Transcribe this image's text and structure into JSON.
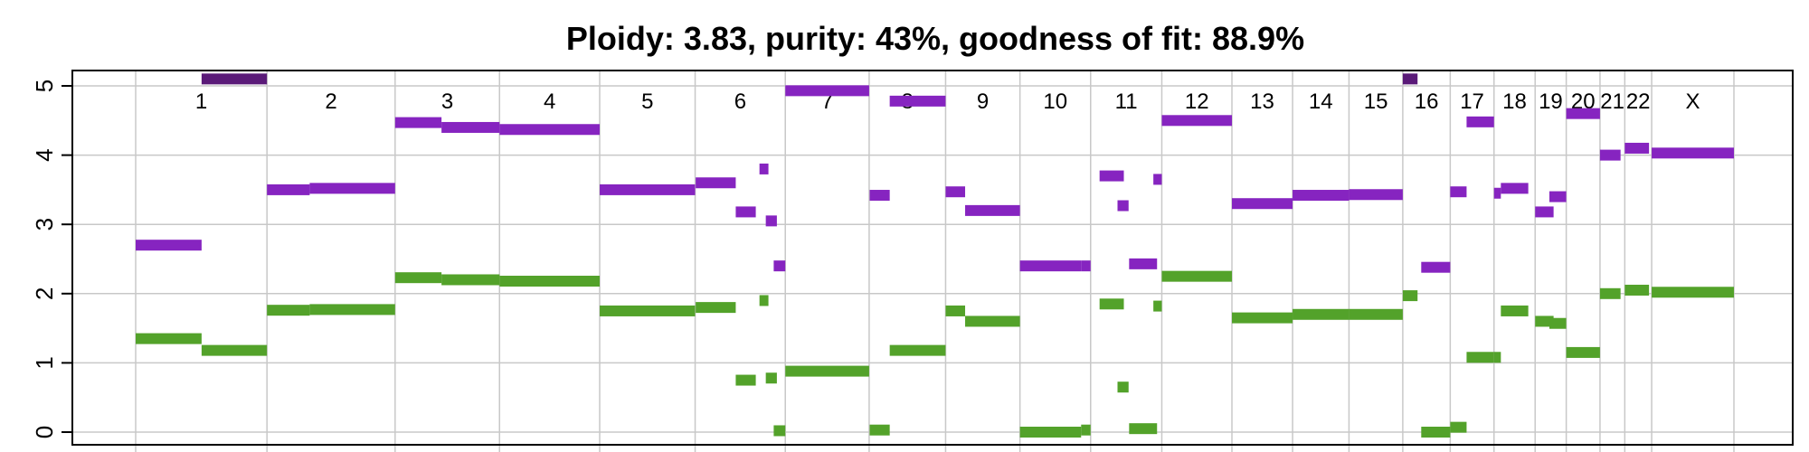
{
  "chart_data": {
    "type": "segment-plot",
    "title": "Ploidy: 3.83, purity: 43%, goodness of fit: 88.9%",
    "xlabel": "",
    "ylabel": "",
    "ylim": [
      0,
      5
    ],
    "yticks": [
      0,
      1,
      2,
      3,
      4,
      5
    ],
    "grid": true,
    "colors": {
      "total": "#8624c0",
      "minor": "#53a22a",
      "clipped": "#5a1a78",
      "grid": "#c8c8c8",
      "axis": "#000000"
    },
    "chromosomes": [
      {
        "label": "1",
        "start": 0,
        "end": 249
      },
      {
        "label": "2",
        "start": 249,
        "end": 492
      },
      {
        "label": "3",
        "start": 492,
        "end": 690
      },
      {
        "label": "4",
        "start": 690,
        "end": 880
      },
      {
        "label": "5",
        "start": 880,
        "end": 1061
      },
      {
        "label": "6",
        "start": 1061,
        "end": 1232
      },
      {
        "label": "7",
        "start": 1232,
        "end": 1391
      },
      {
        "label": "8",
        "start": 1391,
        "end": 1536
      },
      {
        "label": "9",
        "start": 1536,
        "end": 1677
      },
      {
        "label": "10",
        "start": 1677,
        "end": 1811
      },
      {
        "label": "11",
        "start": 1811,
        "end": 1946
      },
      {
        "label": "12",
        "start": 1946,
        "end": 2079
      },
      {
        "label": "13",
        "start": 2079,
        "end": 2194
      },
      {
        "label": "14",
        "start": 2194,
        "end": 2301
      },
      {
        "label": "15",
        "start": 2301,
        "end": 2403
      },
      {
        "label": "16",
        "start": 2403,
        "end": 2493
      },
      {
        "label": "17",
        "start": 2493,
        "end": 2576
      },
      {
        "label": "18",
        "start": 2576,
        "end": 2654
      },
      {
        "label": "19",
        "start": 2654,
        "end": 2713
      },
      {
        "label": "20",
        "start": 2713,
        "end": 2777
      },
      {
        "label": "21",
        "start": 2777,
        "end": 2824
      },
      {
        "label": "22",
        "start": 2824,
        "end": 2875
      },
      {
        "label": "X",
        "start": 2875,
        "end": 3031
      }
    ],
    "series": [
      {
        "key": "total",
        "segments": [
          {
            "start": 0,
            "end": 125,
            "value": 2.7
          },
          {
            "start": 125,
            "end": 249,
            "value": 5.1,
            "clipped": true
          },
          {
            "start": 249,
            "end": 330,
            "value": 3.5
          },
          {
            "start": 330,
            "end": 492,
            "value": 3.52
          },
          {
            "start": 492,
            "end": 580,
            "value": 4.47
          },
          {
            "start": 580,
            "end": 690,
            "value": 4.4
          },
          {
            "start": 690,
            "end": 880,
            "value": 4.37
          },
          {
            "start": 880,
            "end": 1061,
            "value": 3.5
          },
          {
            "start": 1062,
            "end": 1138,
            "value": 3.6
          },
          {
            "start": 1138,
            "end": 1176,
            "value": 3.18
          },
          {
            "start": 1183,
            "end": 1200,
            "value": 3.8
          },
          {
            "start": 1195,
            "end": 1216,
            "value": 3.05
          },
          {
            "start": 1210,
            "end": 1232,
            "value": 2.4
          },
          {
            "start": 1232,
            "end": 1391,
            "value": 4.93
          },
          {
            "start": 1392,
            "end": 1430,
            "value": 3.42
          },
          {
            "start": 1430,
            "end": 1536,
            "value": 4.78
          },
          {
            "start": 1536,
            "end": 1573,
            "value": 3.47
          },
          {
            "start": 1573,
            "end": 1677,
            "value": 3.2
          },
          {
            "start": 1677,
            "end": 1793,
            "value": 2.4
          },
          {
            "start": 1793,
            "end": 1811,
            "value": 2.4
          },
          {
            "start": 1828,
            "end": 1874,
            "value": 3.7
          },
          {
            "start": 1862,
            "end": 1883,
            "value": 3.27
          },
          {
            "start": 1884,
            "end": 1937,
            "value": 2.43
          },
          {
            "start": 1930,
            "end": 1946,
            "value": 3.65
          },
          {
            "start": 1946,
            "end": 2079,
            "value": 4.5
          },
          {
            "start": 2079,
            "end": 2194,
            "value": 3.3
          },
          {
            "start": 2194,
            "end": 2301,
            "value": 3.42
          },
          {
            "start": 2301,
            "end": 2403,
            "value": 3.43
          },
          {
            "start": 2403,
            "end": 2431,
            "value": 5.1,
            "clipped": true
          },
          {
            "start": 2438,
            "end": 2493,
            "value": 2.38
          },
          {
            "start": 2493,
            "end": 2524,
            "value": 3.47
          },
          {
            "start": 2524,
            "end": 2576,
            "value": 4.48
          },
          {
            "start": 2576,
            "end": 2589,
            "value": 3.45
          },
          {
            "start": 2589,
            "end": 2641,
            "value": 3.52
          },
          {
            "start": 2654,
            "end": 2689,
            "value": 3.18
          },
          {
            "start": 2681,
            "end": 2713,
            "value": 3.4
          },
          {
            "start": 2713,
            "end": 2777,
            "value": 4.6
          },
          {
            "start": 2777,
            "end": 2816,
            "value": 4.0
          },
          {
            "start": 2824,
            "end": 2870,
            "value": 4.1
          },
          {
            "start": 2875,
            "end": 3031,
            "value": 4.03
          }
        ]
      },
      {
        "key": "minor",
        "segments": [
          {
            "start": 0,
            "end": 125,
            "value": 1.35
          },
          {
            "start": 125,
            "end": 249,
            "value": 1.18
          },
          {
            "start": 249,
            "end": 330,
            "value": 1.76
          },
          {
            "start": 330,
            "end": 492,
            "value": 1.77
          },
          {
            "start": 492,
            "end": 580,
            "value": 2.23
          },
          {
            "start": 580,
            "end": 690,
            "value": 2.2
          },
          {
            "start": 690,
            "end": 880,
            "value": 2.18
          },
          {
            "start": 880,
            "end": 1061,
            "value": 1.75
          },
          {
            "start": 1062,
            "end": 1138,
            "value": 1.8
          },
          {
            "start": 1138,
            "end": 1176,
            "value": 0.75
          },
          {
            "start": 1183,
            "end": 1200,
            "value": 1.9
          },
          {
            "start": 1195,
            "end": 1216,
            "value": 0.78
          },
          {
            "start": 1210,
            "end": 1232,
            "value": 0.02
          },
          {
            "start": 1232,
            "end": 1391,
            "value": 0.88
          },
          {
            "start": 1392,
            "end": 1430,
            "value": 0.03
          },
          {
            "start": 1430,
            "end": 1536,
            "value": 1.18
          },
          {
            "start": 1536,
            "end": 1573,
            "value": 1.75
          },
          {
            "start": 1573,
            "end": 1677,
            "value": 1.6
          },
          {
            "start": 1677,
            "end": 1793,
            "value": 0.0
          },
          {
            "start": 1793,
            "end": 1811,
            "value": 0.03
          },
          {
            "start": 1828,
            "end": 1874,
            "value": 1.85
          },
          {
            "start": 1862,
            "end": 1883,
            "value": 0.65
          },
          {
            "start": 1884,
            "end": 1937,
            "value": 0.05
          },
          {
            "start": 1930,
            "end": 1946,
            "value": 1.82
          },
          {
            "start": 1946,
            "end": 2079,
            "value": 2.25
          },
          {
            "start": 2079,
            "end": 2194,
            "value": 1.65
          },
          {
            "start": 2194,
            "end": 2301,
            "value": 1.7
          },
          {
            "start": 2301,
            "end": 2403,
            "value": 1.7
          },
          {
            "start": 2403,
            "end": 2431,
            "value": 1.97
          },
          {
            "start": 2438,
            "end": 2493,
            "value": 0.0
          },
          {
            "start": 2493,
            "end": 2524,
            "value": 0.07
          },
          {
            "start": 2524,
            "end": 2576,
            "value": 1.08
          },
          {
            "start": 2576,
            "end": 2589,
            "value": 1.08
          },
          {
            "start": 2589,
            "end": 2641,
            "value": 1.75
          },
          {
            "start": 2654,
            "end": 2689,
            "value": 1.6
          },
          {
            "start": 2681,
            "end": 2713,
            "value": 1.57
          },
          {
            "start": 2713,
            "end": 2777,
            "value": 1.15
          },
          {
            "start": 2777,
            "end": 2816,
            "value": 2.0
          },
          {
            "start": 2824,
            "end": 2870,
            "value": 2.05
          },
          {
            "start": 2875,
            "end": 3031,
            "value": 2.02
          }
        ]
      }
    ]
  }
}
